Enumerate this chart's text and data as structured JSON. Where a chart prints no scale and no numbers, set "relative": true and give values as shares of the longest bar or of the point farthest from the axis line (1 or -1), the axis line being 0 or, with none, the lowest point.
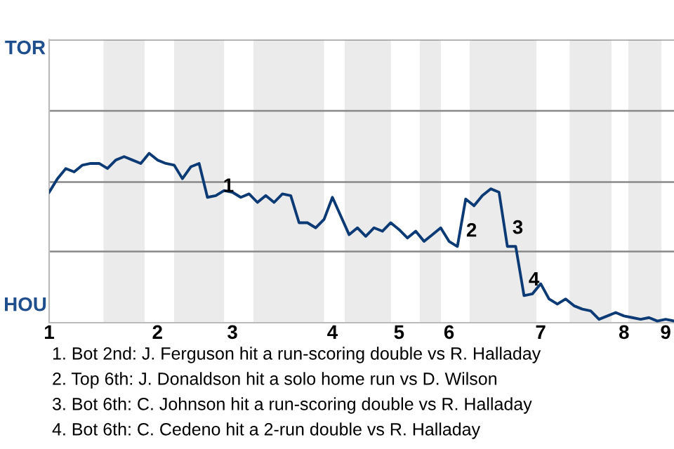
{
  "chart_data": {
    "type": "line",
    "relative": true,
    "categories": [
      "1",
      null,
      null,
      null,
      null,
      null,
      null,
      null,
      null,
      null,
      null,
      null,
      null,
      "2",
      null,
      null,
      null,
      null,
      null,
      null,
      null,
      null,
      "3",
      null,
      null,
      null,
      null,
      null,
      null,
      null,
      null,
      null,
      null,
      null,
      "4",
      null,
      null,
      null,
      null,
      null,
      null,
      null,
      "5",
      null,
      null,
      null,
      null,
      null,
      "6",
      null,
      null,
      null,
      null,
      null,
      null,
      null,
      null,
      null,
      null,
      "7",
      null,
      null,
      null,
      null,
      null,
      null,
      null,
      null,
      null,
      "8",
      null,
      null,
      null,
      null,
      "9",
      null
    ],
    "series": [
      {
        "color": "#0b3a75",
        "values": [
          0.77,
          0.85,
          0.91,
          0.89,
          0.93,
          0.94,
          0.94,
          0.91,
          0.96,
          0.98,
          0.96,
          0.94,
          1.0,
          0.96,
          0.94,
          0.93,
          0.85,
          0.92,
          0.94,
          0.74,
          0.75,
          0.78,
          0.77,
          0.74,
          0.76,
          0.71,
          0.75,
          0.71,
          0.76,
          0.75,
          0.59,
          0.59,
          0.56,
          0.61,
          0.74,
          0.63,
          0.52,
          0.56,
          0.51,
          0.56,
          0.54,
          0.59,
          0.55,
          0.5,
          0.54,
          0.48,
          0.52,
          0.56,
          0.48,
          0.45,
          0.73,
          0.69,
          0.75,
          0.79,
          0.77,
          0.45,
          0.45,
          0.16,
          0.17,
          0.23,
          0.14,
          0.11,
          0.14,
          0.1,
          0.08,
          0.07,
          0.02,
          0.04,
          0.06,
          0.04,
          0.03,
          0.02,
          0.03,
          0.01,
          0.02,
          0.01
        ]
      }
    ],
    "ref_lines": [
      {
        "axis": "y",
        "value": 0.42,
        "color": "#888888"
      },
      {
        "axis": "y",
        "value": 0.83,
        "color": "#888888"
      },
      {
        "axis": "y",
        "value": 1.25,
        "color": "#888888"
      },
      {
        "axis": "y",
        "value": 1.67,
        "color": "#888888"
      }
    ],
    "annotations": [
      "TOR",
      "HOU",
      "1",
      "2",
      "3",
      "4",
      "1. Bot 2nd: J. Ferguson hit a run-scoring double vs R. Halladay",
      "2. Top 6th: J. Donaldson hit a solo home run vs D. Wilson",
      "3. Bot 6th: C. Johnson hit a run-scoring double vs R. Halladay",
      "4. Bot 6th: C. Cedeno hit a 2-run double vs R. Halladay"
    ]
  }
}
